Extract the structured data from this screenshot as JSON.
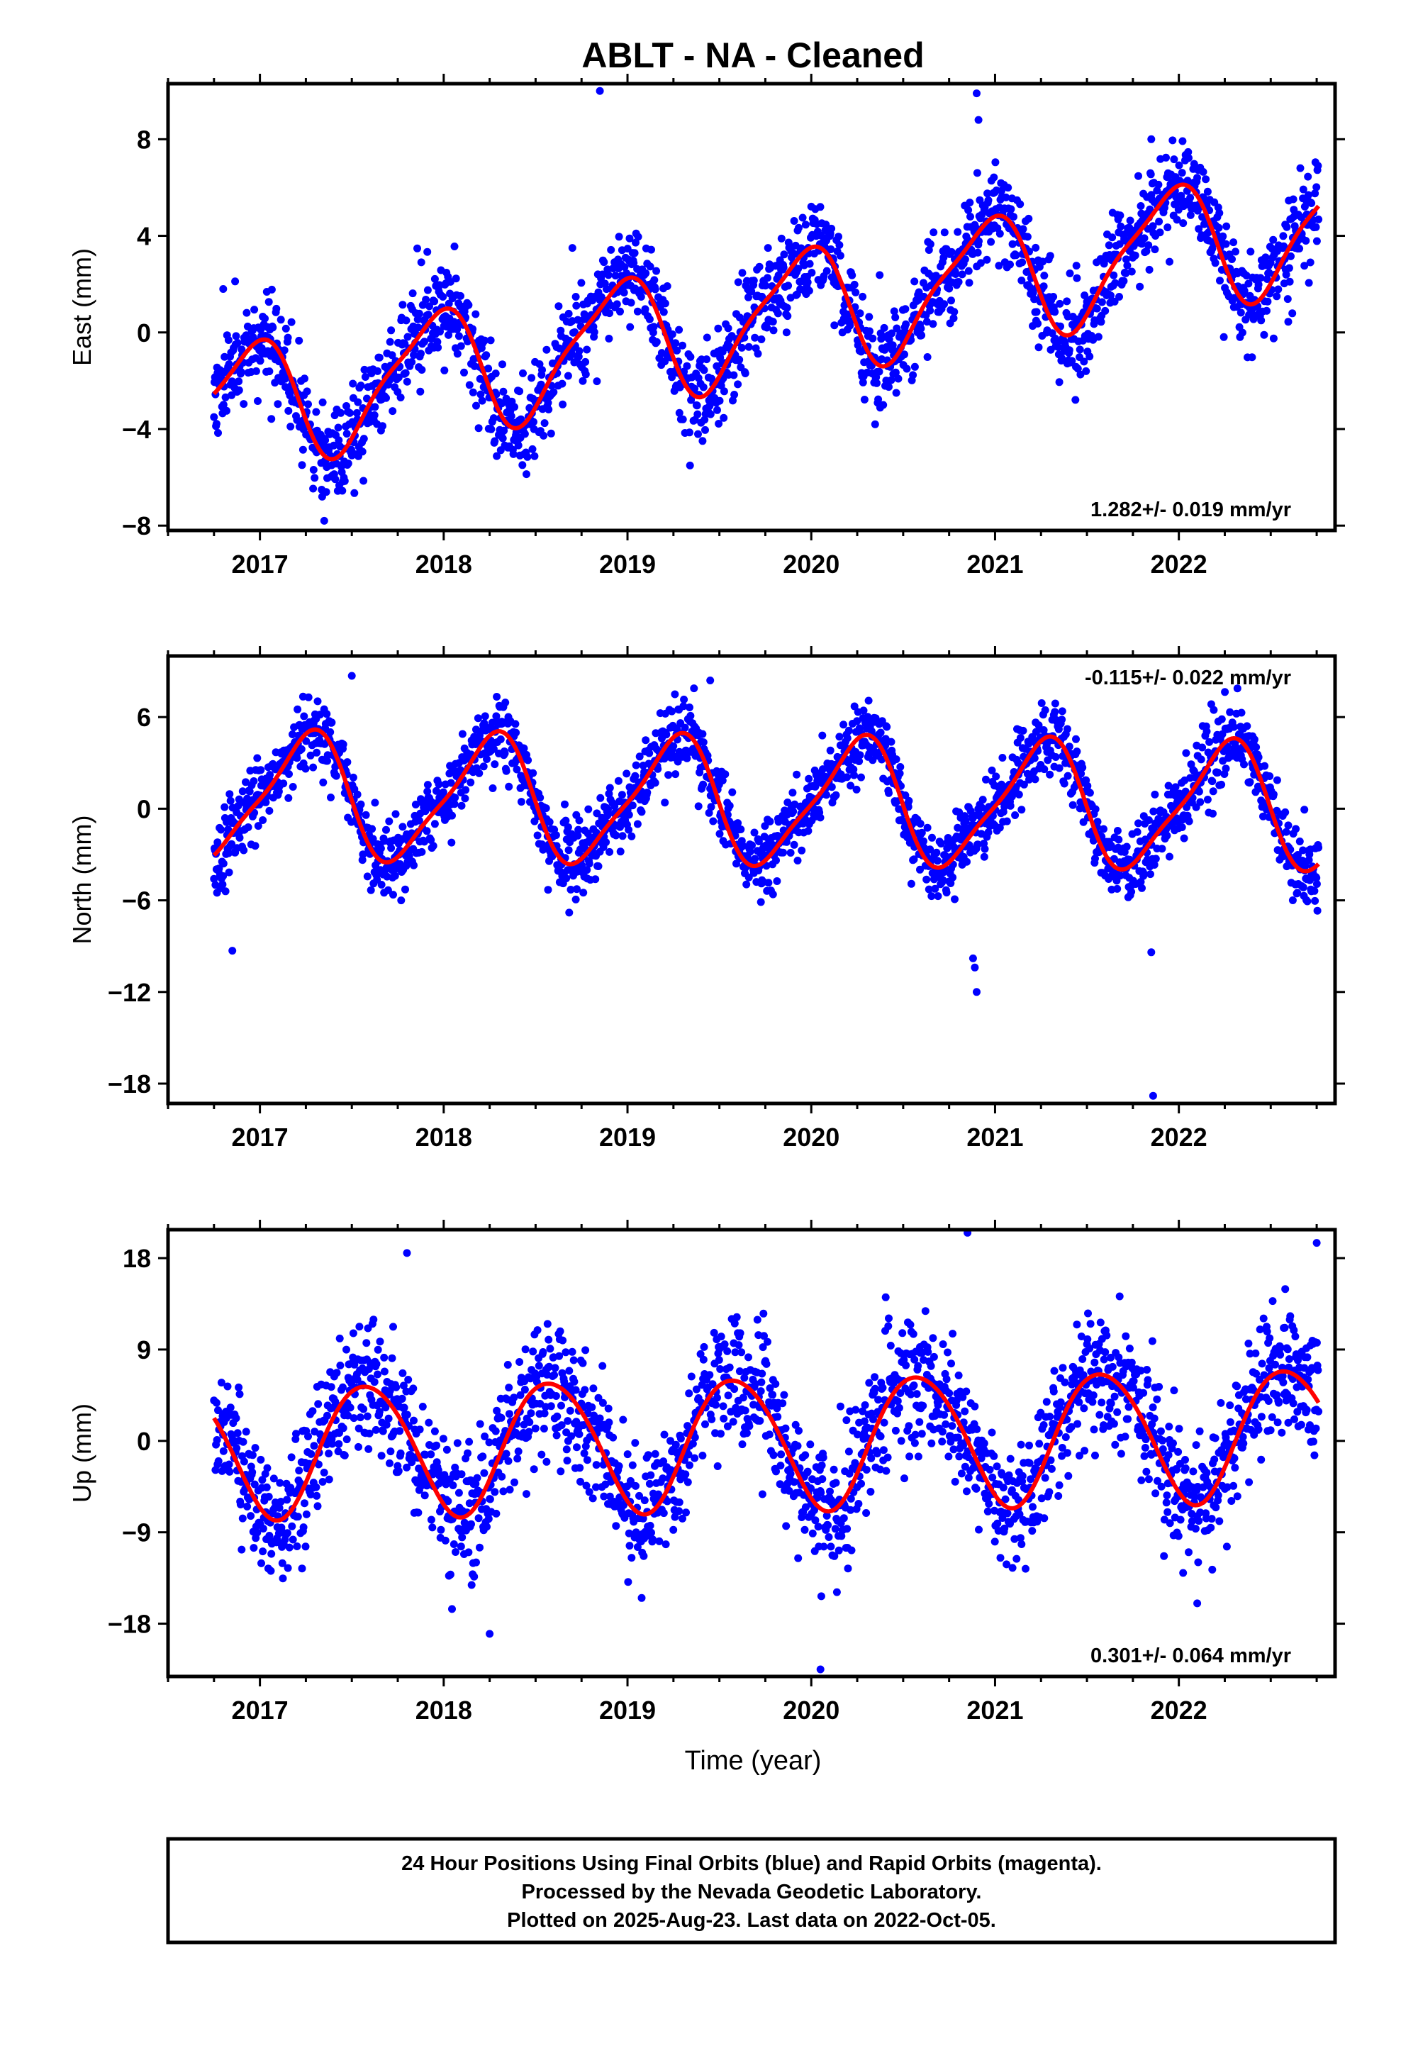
{
  "title": "ABLT  - NA - Cleaned",
  "xlabel": "Time (year)",
  "footer": {
    "line1": "24 Hour Positions Using Final Orbits (blue) and Rapid Orbits (magenta).",
    "line2": "Processed by the Nevada Geodetic Laboratory.",
    "line3": "Plotted on 2025-Aug-23. Last data on 2022-Oct-05."
  },
  "colors": {
    "points": "#0000ff",
    "fit": "#ff0000",
    "axes": "#000000"
  },
  "chart_data": [
    {
      "type": "scatter",
      "component": "east",
      "ylabel": "East (mm)",
      "rate_label": "1.282+/- 0.019 mm/yr",
      "rate_position": "bottom-right",
      "xlim": [
        2016.5,
        2022.85
      ],
      "ylim": [
        -8.2,
        10.3
      ],
      "yticks": [
        -8,
        -4,
        0,
        4,
        8
      ],
      "xticks": [
        2017,
        2018,
        2019,
        2020,
        2021,
        2022
      ],
      "start": 2016.75,
      "end": 2022.76,
      "model": {
        "intercept": -3.2,
        "slope": 1.282,
        "annual_amp": 2.5,
        "annual_phase_deg": 20,
        "semi_amp": 0.6,
        "semi_phase_deg": 200
      },
      "scatter_sd": 1.0,
      "seed": 11,
      "outliers": [
        [
          2016.8,
          1.8
        ],
        [
          2018.85,
          10.0
        ],
        [
          2020.9,
          9.9
        ],
        [
          2020.91,
          8.8
        ],
        [
          2021.85,
          8.0
        ],
        [
          2017.35,
          -7.8
        ],
        [
          2018.7,
          3.5
        ]
      ]
    },
    {
      "type": "scatter",
      "component": "north",
      "ylabel": "North (mm)",
      "rate_label": "-0.115+/- 0.022 mm/yr",
      "rate_position": "top-right",
      "xlim": [
        2016.5,
        2022.85
      ],
      "ylim": [
        -19.3,
        10.0
      ],
      "yticks": [
        -18,
        -12,
        -6,
        0,
        6
      ],
      "xticks": [
        2017,
        2018,
        2019,
        2020,
        2021,
        2022
      ],
      "start": 2016.75,
      "end": 2022.76,
      "model": {
        "intercept": 0.8,
        "slope": -0.115,
        "annual_amp": 4.0,
        "annual_phase_deg": 270,
        "semi_amp": 0.9,
        "semi_phase_deg": 10
      },
      "scatter_sd": 1.2,
      "seed": 23,
      "outliers": [
        [
          2016.85,
          -9.3
        ],
        [
          2020.88,
          -9.8
        ],
        [
          2020.89,
          -10.4
        ],
        [
          2020.9,
          -12.0
        ],
        [
          2021.85,
          -9.4
        ],
        [
          2021.86,
          -18.8
        ],
        [
          2017.5,
          8.7
        ],
        [
          2019.45,
          8.4
        ]
      ]
    },
    {
      "type": "scatter",
      "component": "up",
      "ylabel": "Up (mm)",
      "rate_label": "0.301+/- 0.064 mm/yr",
      "rate_position": "bottom-right",
      "xlim": [
        2016.5,
        2022.85
      ],
      "ylim": [
        -23.2,
        20.8
      ],
      "yticks": [
        -18,
        -9,
        0,
        9,
        18
      ],
      "xticks": [
        2017,
        2018,
        2019,
        2020,
        2021,
        2022
      ],
      "start": 2016.75,
      "end": 2022.76,
      "model": {
        "intercept": -1.0,
        "slope": 0.301,
        "annual_amp": 6.5,
        "annual_phase_deg": 150,
        "semi_amp": 0.5,
        "semi_phase_deg": 0
      },
      "scatter_sd": 3.2,
      "seed": 37,
      "outliers": [
        [
          2020.85,
          20.5
        ],
        [
          2022.75,
          19.5
        ],
        [
          2017.8,
          18.5
        ],
        [
          2020.05,
          -22.5
        ],
        [
          2018.25,
          -19.0
        ],
        [
          2022.1,
          -16.0
        ]
      ]
    }
  ]
}
